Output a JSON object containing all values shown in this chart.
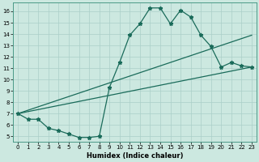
{
  "xlabel": "Humidex (Indice chaleur)",
  "bg_color": "#cce8e0",
  "line_color": "#1a6b5a",
  "xlim": [
    -0.5,
    23.5
  ],
  "ylim": [
    4.5,
    16.8
  ],
  "yticks": [
    5,
    6,
    7,
    8,
    9,
    10,
    11,
    12,
    13,
    14,
    15,
    16
  ],
  "xticks": [
    0,
    1,
    2,
    3,
    4,
    5,
    6,
    7,
    8,
    9,
    10,
    11,
    12,
    13,
    14,
    15,
    16,
    17,
    18,
    19,
    20,
    21,
    22,
    23
  ],
  "curve_x": [
    0,
    1,
    2,
    3,
    4,
    5,
    6,
    7,
    8,
    9,
    10,
    11,
    12,
    13,
    14,
    15,
    16,
    17,
    18,
    19,
    20,
    21,
    22,
    23
  ],
  "curve_y": [
    7.0,
    6.5,
    6.5,
    5.7,
    5.5,
    5.2,
    4.9,
    4.9,
    5.0,
    9.3,
    11.5,
    13.9,
    14.9,
    16.3,
    16.3,
    14.9,
    16.1,
    15.5,
    13.9,
    12.9,
    11.1,
    11.5,
    11.2,
    11.1
  ],
  "line1_x": [
    0,
    23
  ],
  "line1_y": [
    7.0,
    11.1
  ],
  "line2_x": [
    0,
    23
  ],
  "line2_y": [
    7.0,
    13.9
  ],
  "grid_color": "#aacfc8",
  "xlabel_fontsize": 6,
  "tick_fontsize": 5
}
